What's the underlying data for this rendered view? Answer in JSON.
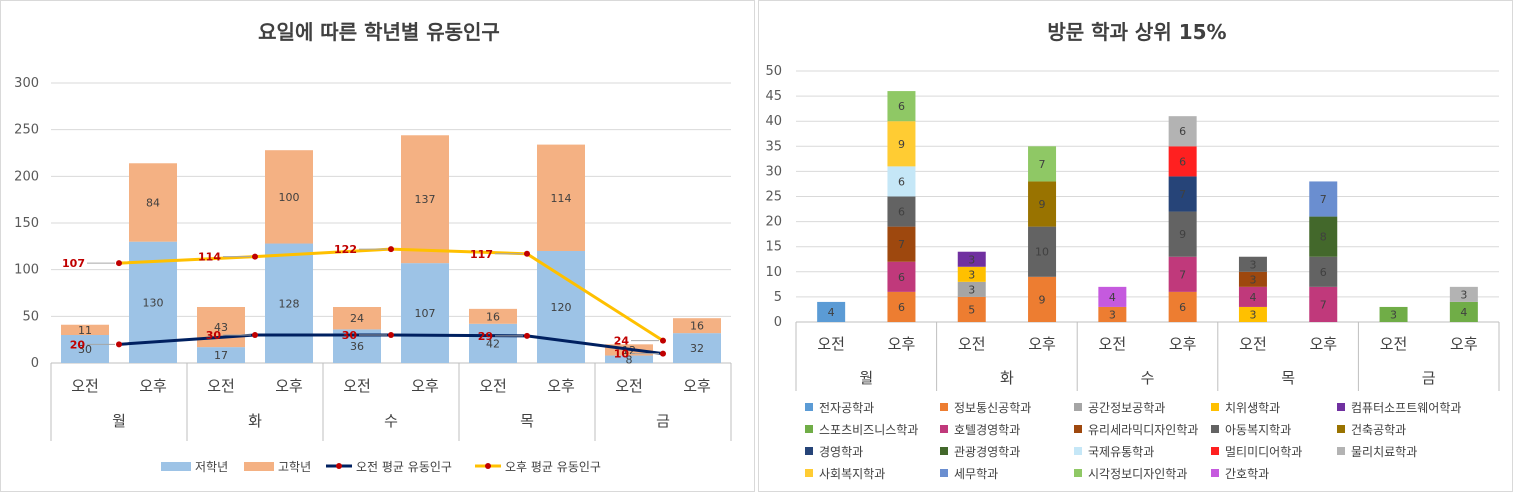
{
  "left_chart": {
    "title": "요일에 따른 학년별 유동인구",
    "y_ticks": [
      "0",
      "50",
      "100",
      "150",
      "200",
      "250",
      "300"
    ],
    "legend": {
      "low": "저학년",
      "high": "고학년",
      "am_avg": "오전 평균 유동인구",
      "pm_avg": "오후 평균 유동인구"
    },
    "colors": {
      "low": "#9dc3e6",
      "high": "#f4b183",
      "am_avg": "#002060",
      "pm_avg": "#ffc000",
      "marker": "#c00000"
    }
  },
  "right_chart": {
    "title": "방문 학과 상위 15%",
    "y_ticks": [
      "0",
      "5",
      "10",
      "15",
      "20",
      "25",
      "30",
      "35",
      "40",
      "45",
      "50"
    ]
  },
  "chart_data": [
    {
      "type": "bar",
      "title": "요일에 따른 학년별 유동인구",
      "stacked": true,
      "groups": [
        "월",
        "화",
        "수",
        "목",
        "금"
      ],
      "categories": [
        "오전",
        "오후",
        "오전",
        "오후",
        "오전",
        "오후",
        "오전",
        "오후",
        "오전",
        "오후"
      ],
      "ylim": [
        0,
        300
      ],
      "series": [
        {
          "name": "저학년",
          "values": [
            30,
            130,
            17,
            128,
            36,
            107,
            42,
            120,
            8,
            32
          ]
        },
        {
          "name": "고학년",
          "values": [
            11,
            84,
            43,
            100,
            24,
            137,
            16,
            114,
            12,
            16
          ]
        }
      ],
      "lines": [
        {
          "name": "오전 평균 유동인구",
          "values": [
            20,
            30,
            30,
            29,
            10
          ]
        },
        {
          "name": "오후 평균 유동인구",
          "values": [
            107,
            114,
            122,
            117,
            24
          ]
        }
      ],
      "legend_position": "bottom",
      "grid": true
    },
    {
      "type": "bar",
      "title": "방문 학과 상위 15%",
      "stacked": true,
      "groups": [
        "월",
        "화",
        "수",
        "목",
        "금"
      ],
      "categories": [
        "오전",
        "오후",
        "오전",
        "오후",
        "오전",
        "오후",
        "오전",
        "오후",
        "오전",
        "오후"
      ],
      "ylim": [
        0,
        50
      ],
      "legend_position": "bottom",
      "grid": true,
      "series": [
        {
          "name": "전자공학과",
          "color": "#5b9bd5",
          "values": [
            4,
            0,
            0,
            0,
            0,
            0,
            0,
            0,
            0,
            0
          ]
        },
        {
          "name": "정보통신공학과",
          "color": "#ed7d31",
          "values": [
            0,
            6,
            5,
            9,
            3,
            6,
            0,
            0,
            0,
            0
          ]
        },
        {
          "name": "공간정보공학과",
          "color": "#a5a5a5",
          "values": [
            0,
            0,
            3,
            0,
            0,
            0,
            0,
            0,
            0,
            0
          ]
        },
        {
          "name": "치위생학과",
          "color": "#ffc000",
          "values": [
            0,
            0,
            3,
            0,
            0,
            0,
            3,
            0,
            0,
            0
          ]
        },
        {
          "name": "컴퓨터소프트웨어학과",
          "color": "#7030a0",
          "values": [
            0,
            0,
            3,
            0,
            0,
            0,
            0,
            0,
            0,
            0
          ]
        },
        {
          "name": "스포츠비즈니스학과",
          "color": "#70ad47",
          "values": [
            0,
            0,
            0,
            0,
            0,
            0,
            0,
            0,
            3,
            4
          ]
        },
        {
          "name": "호텔경영학과",
          "color": "#c0397b",
          "values": [
            0,
            6,
            0,
            0,
            0,
            7,
            4,
            7,
            0,
            0
          ]
        },
        {
          "name": "유리세라믹디자인학과",
          "color": "#9e480e",
          "values": [
            0,
            7,
            0,
            0,
            0,
            0,
            3,
            0,
            0,
            0
          ]
        },
        {
          "name": "아동복지학과",
          "color": "#636363",
          "values": [
            0,
            6,
            0,
            10,
            0,
            9,
            3,
            6,
            0,
            0
          ]
        },
        {
          "name": "건축공학과",
          "color": "#997300",
          "values": [
            0,
            0,
            0,
            9,
            0,
            0,
            0,
            0,
            0,
            0
          ]
        },
        {
          "name": "경영학과",
          "color": "#264478",
          "values": [
            0,
            0,
            0,
            0,
            0,
            7,
            0,
            0,
            0,
            0
          ]
        },
        {
          "name": "관광경영학과",
          "color": "#43682b",
          "values": [
            0,
            0,
            0,
            0,
            0,
            0,
            0,
            8,
            0,
            0
          ]
        },
        {
          "name": "국제유통학과",
          "color": "#c5e7f7",
          "values": [
            0,
            6,
            0,
            0,
            0,
            0,
            0,
            0,
            0,
            0
          ]
        },
        {
          "name": "멀티미디어학과",
          "color": "#ff2020",
          "values": [
            0,
            0,
            0,
            0,
            0,
            6,
            0,
            0,
            0,
            0
          ]
        },
        {
          "name": "물리치료학과",
          "color": "#b3b3b3",
          "values": [
            0,
            0,
            0,
            0,
            0,
            6,
            0,
            0,
            0,
            3
          ]
        },
        {
          "name": "사회복지학과",
          "color": "#ffcc33",
          "values": [
            0,
            9,
            0,
            0,
            0,
            0,
            0,
            0,
            0,
            0
          ]
        },
        {
          "name": "세무학과",
          "color": "#6a8ed0",
          "values": [
            0,
            0,
            0,
            0,
            0,
            0,
            0,
            7,
            0,
            0
          ]
        },
        {
          "name": "시각정보디자인학과",
          "color": "#8fc865",
          "values": [
            0,
            6,
            0,
            7,
            0,
            0,
            0,
            0,
            0,
            0
          ]
        },
        {
          "name": "간호학과",
          "color": "#c55ade",
          "values": [
            0,
            0,
            0,
            0,
            4,
            0,
            0,
            0,
            0,
            0
          ]
        }
      ],
      "stack_order": [
        [
          "전자공학과"
        ],
        [
          "정보통신공학과",
          "호텔경영학과",
          "유리세라믹디자인학과",
          "아동복지학과",
          "국제유통학과",
          "사회복지학과",
          "시각정보디자인학과"
        ],
        [
          "정보통신공학과",
          "공간정보공학과",
          "치위생학과",
          "컴퓨터소프트웨어학과"
        ],
        [
          "정보통신공학과",
          "아동복지학과",
          "건축공학과",
          "시각정보디자인학과"
        ],
        [
          "정보통신공학과",
          "간호학과"
        ],
        [
          "정보통신공학과",
          "호텔경영학과",
          "아동복지학과",
          "경영학과",
          "멀티미디어학과",
          "물리치료학과"
        ],
        [
          "치위생학과",
          "호텔경영학과",
          "유리세라믹디자인학과",
          "아동복지학과"
        ],
        [
          "호텔경영학과",
          "아동복지학과",
          "관광경영학과",
          "세무학과"
        ],
        [
          "스포츠비즈니스학과"
        ],
        [
          "스포츠비즈니스학과",
          "물리치료학과"
        ]
      ]
    }
  ]
}
